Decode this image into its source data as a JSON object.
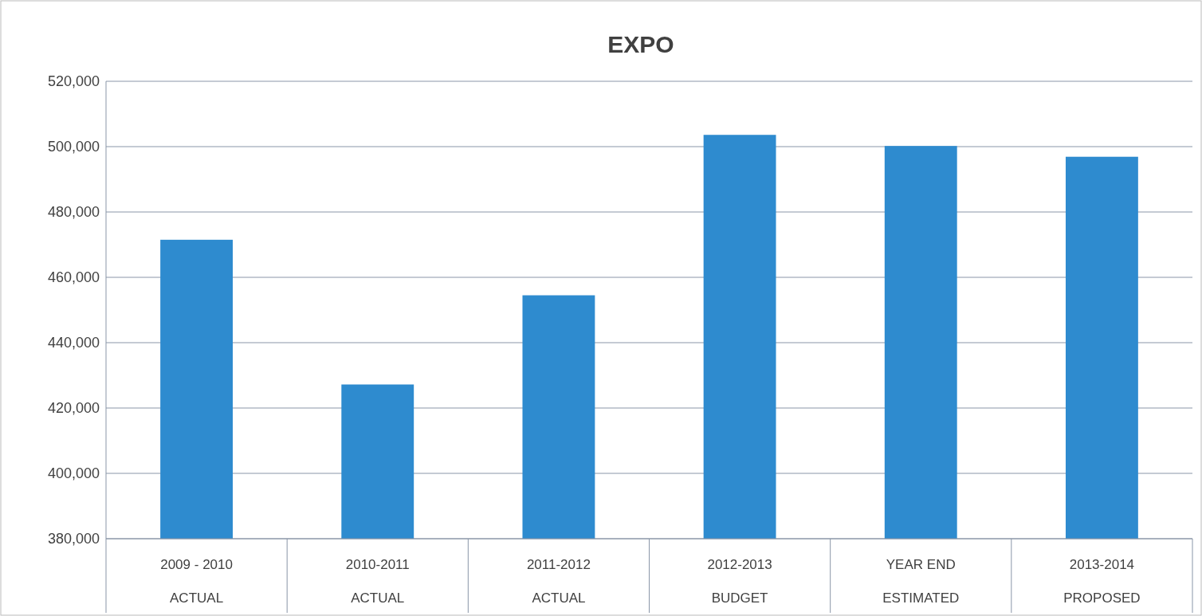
{
  "chart_data": {
    "type": "bar",
    "title": "EXPO",
    "categories": [
      "2009 - 2010\nACTUAL",
      "2010-2011\nACTUAL",
      "2011-2012\nACTUAL",
      "2012-2013\nBUDGET",
      "YEAR END\nESTIMATED",
      "2013-2014\nPROPOSED"
    ],
    "values": [
      471500,
      427200,
      454500,
      503600,
      500200,
      496900
    ],
    "color": "#2e8bcf",
    "ylim": [
      380000,
      520000
    ],
    "yticks": [
      {
        "value": 380000,
        "label": "380,000"
      },
      {
        "value": 400000,
        "label": "400,000"
      },
      {
        "value": 420000,
        "label": "420,000"
      },
      {
        "value": 440000,
        "label": "440,000"
      },
      {
        "value": 460000,
        "label": "460,000"
      },
      {
        "value": 480000,
        "label": "480,000"
      },
      {
        "value": 500000,
        "label": "500,000"
      },
      {
        "value": 520000,
        "label": "520,000"
      }
    ],
    "grid": "y"
  }
}
